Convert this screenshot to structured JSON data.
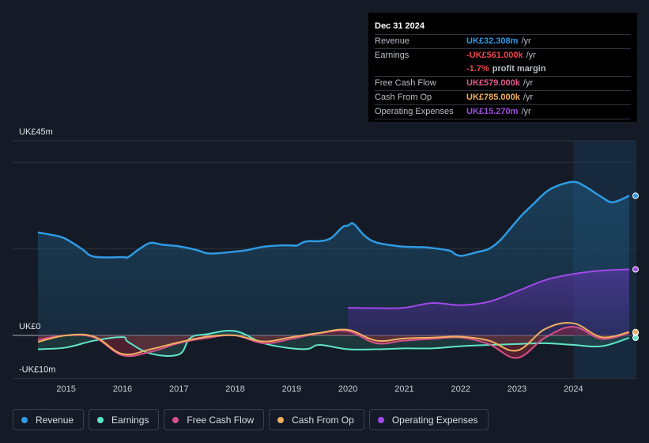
{
  "tooltip": {
    "date": "Dec 31 2024",
    "rows": [
      {
        "label": "Revenue",
        "value": "UK£32.308m",
        "unit": "/yr",
        "color": "#2e9be4"
      },
      {
        "label": "Earnings",
        "value": "-UK£561.000k",
        "unit": "/yr",
        "color": "#e8464f"
      },
      {
        "label": "",
        "value": "-1.7%",
        "unit": "profit margin",
        "color": "#e8464f"
      },
      {
        "label": "Free Cash Flow",
        "value": "UK£579.000k",
        "unit": "/yr",
        "color": "#e0588f"
      },
      {
        "label": "Cash From Op",
        "value": "UK£785.000k",
        "unit": "/yr",
        "color": "#f0b060"
      },
      {
        "label": "Operating Expenses",
        "value": "UK£15.270m",
        "unit": "/yr",
        "color": "#9b4de0"
      }
    ]
  },
  "legend": [
    {
      "label": "Revenue",
      "color": "#2e9be4"
    },
    {
      "label": "Earnings",
      "color": "#5ee6c8"
    },
    {
      "label": "Free Cash Flow",
      "color": "#d8508a"
    },
    {
      "label": "Cash From Op",
      "color": "#f0b060"
    },
    {
      "label": "Operating Expenses",
      "color": "#a048e8"
    }
  ],
  "chart_data": {
    "type": "area",
    "title": "",
    "xlabel": "",
    "ylabel": "",
    "y_tick_labels": [
      "UK£45m",
      "UK£0",
      "-UK£10m"
    ],
    "ylim": [
      -10,
      45
    ],
    "xlim": [
      2014.5,
      2025.0
    ],
    "x_ticks": [
      2015,
      2016,
      2017,
      2018,
      2019,
      2020,
      2021,
      2022,
      2023,
      2024
    ],
    "highlight_start": 2024.0,
    "series": [
      {
        "name": "Revenue",
        "color": "#2e9be4",
        "fill": true,
        "x": [
          2014.5,
          2014.9,
          2015.1,
          2015.3,
          2015.5,
          2016.0,
          2016.1,
          2016.3,
          2016.5,
          2016.7,
          2017.0,
          2017.3,
          2017.5,
          2017.7,
          2018.0,
          2018.2,
          2018.5,
          2018.8,
          2019.0,
          2019.1,
          2019.2,
          2019.3,
          2019.5,
          2019.7,
          2019.9,
          2020.0,
          2020.1,
          2020.3,
          2020.5,
          2020.8,
          2021.0,
          2021.3,
          2021.5,
          2021.8,
          2021.9,
          2022.0,
          2022.1,
          2022.3,
          2022.5,
          2022.7,
          2022.9,
          2023.1,
          2023.3,
          2023.5,
          2023.7,
          2024.0,
          2024.2,
          2024.5,
          2024.7,
          2025.0
        ],
        "values": [
          23.8,
          22.8,
          21.5,
          19.8,
          18.2,
          18.1,
          18.1,
          20.0,
          21.4,
          21.0,
          20.6,
          19.8,
          19.0,
          19.0,
          19.4,
          19.7,
          20.5,
          20.8,
          20.8,
          20.8,
          21.5,
          21.8,
          21.8,
          22.5,
          25.0,
          25.4,
          25.8,
          23.0,
          21.5,
          20.8,
          20.5,
          20.4,
          20.2,
          19.6,
          18.8,
          18.4,
          18.6,
          19.3,
          20.0,
          22.0,
          25.0,
          28.0,
          30.5,
          33.0,
          34.5,
          35.5,
          34.5,
          32.0,
          30.8,
          32.3
        ]
      },
      {
        "name": "Operating Expenses",
        "color": "#a048e8",
        "fill": true,
        "x": [
          2020.0,
          2020.5,
          2021.0,
          2021.5,
          2022.0,
          2022.5,
          2023.0,
          2023.5,
          2024.0,
          2024.5,
          2025.0
        ],
        "values": [
          6.4,
          6.3,
          6.4,
          7.5,
          7.0,
          7.8,
          10.2,
          12.8,
          14.2,
          15.0,
          15.27
        ]
      },
      {
        "name": "Earnings",
        "color": "#5ee6c8",
        "fill": true,
        "x": [
          2014.5,
          2015.0,
          2015.5,
          2016.0,
          2016.1,
          2016.5,
          2017.0,
          2017.2,
          2017.5,
          2018.0,
          2018.5,
          2019.0,
          2019.3,
          2019.5,
          2020.0,
          2020.5,
          2021.0,
          2021.5,
          2022.0,
          2022.5,
          2023.0,
          2023.5,
          2024.0,
          2024.5,
          2025.0
        ],
        "values": [
          -3.2,
          -2.8,
          -1.2,
          -0.4,
          -1.5,
          -4.2,
          -4.4,
          -0.6,
          0.3,
          1.0,
          -1.8,
          -3.0,
          -3.1,
          -2.2,
          -3.2,
          -3.2,
          -3.0,
          -3.0,
          -2.5,
          -2.2,
          -2.0,
          -1.8,
          -2.2,
          -2.5,
          -0.56
        ]
      },
      {
        "name": "Free Cash Flow",
        "color": "#d8508a",
        "fill": true,
        "x": [
          2014.5,
          2015.0,
          2015.5,
          2016.0,
          2016.5,
          2017.0,
          2017.5,
          2018.0,
          2018.5,
          2019.0,
          2019.5,
          2020.0,
          2020.5,
          2021.0,
          2021.5,
          2022.0,
          2022.5,
          2023.0,
          2023.5,
          2024.0,
          2024.5,
          2025.0
        ],
        "values": [
          -1.0,
          0.0,
          -0.5,
          -4.6,
          -3.8,
          -1.8,
          -0.6,
          0.0,
          -1.8,
          -0.8,
          0.5,
          1.0,
          -1.8,
          -1.2,
          -0.8,
          -0.5,
          -2.0,
          -5.2,
          -0.5,
          2.0,
          -0.8,
          0.58
        ]
      },
      {
        "name": "Cash From Op",
        "color": "#f0b060",
        "fill": false,
        "x": [
          2014.5,
          2015.0,
          2015.5,
          2016.0,
          2016.5,
          2017.0,
          2017.5,
          2018.0,
          2018.5,
          2019.0,
          2019.5,
          2020.0,
          2020.5,
          2021.0,
          2021.5,
          2022.0,
          2022.5,
          2023.0,
          2023.5,
          2024.0,
          2024.5,
          2025.0
        ],
        "values": [
          -1.5,
          0.0,
          -0.3,
          -4.3,
          -3.2,
          -1.6,
          -0.3,
          0.0,
          -1.4,
          -0.4,
          0.6,
          1.3,
          -1.2,
          -0.7,
          -0.5,
          -0.3,
          -1.2,
          -3.5,
          1.5,
          2.8,
          -0.4,
          0.79
        ]
      }
    ]
  }
}
